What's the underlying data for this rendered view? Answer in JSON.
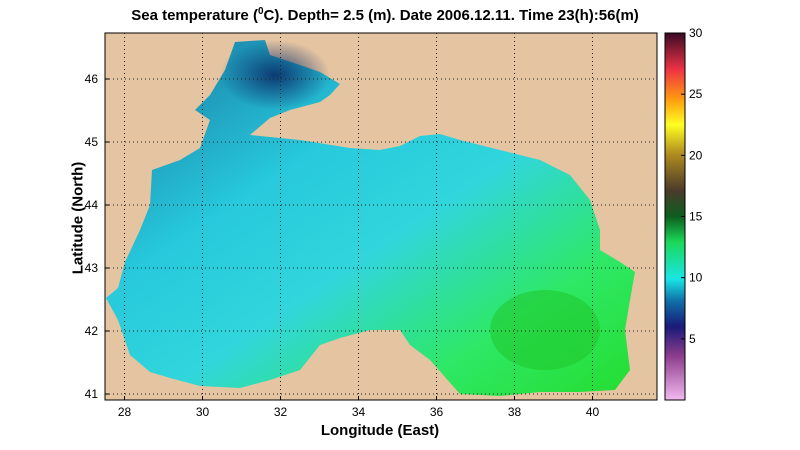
{
  "title": {
    "prefix": "Sea temperature (",
    "sup": "0",
    "suffix": "C). Depth=  2.5 (m). Date 2006.12.11. Time 23(h):56(m)"
  },
  "axes": {
    "xlabel": "Longitude (East)",
    "ylabel": "Latitude (North)",
    "xticks": [
      "28",
      "30",
      "32",
      "34",
      "36",
      "38",
      "40"
    ],
    "yticks": [
      "41",
      "42",
      "43",
      "44",
      "45",
      "46"
    ]
  },
  "colorbar": {
    "ticks": [
      "5",
      "10",
      "15",
      "20",
      "25",
      "30"
    ],
    "range": [
      0,
      30
    ]
  },
  "colors": {
    "land": "#e5c4a1",
    "cold_sea": "#1e8fb0",
    "cyan_sea": "#23d7e0",
    "warm_sea": "#22e33a"
  }
}
